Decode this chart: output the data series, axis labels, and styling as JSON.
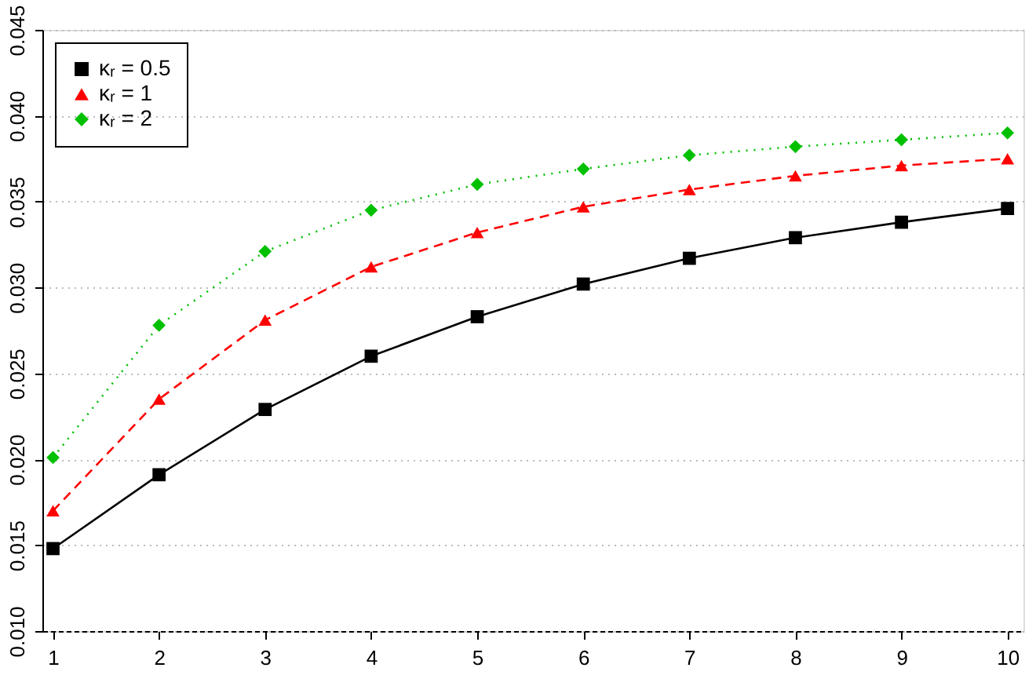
{
  "chart_data": {
    "type": "line",
    "x": [
      1,
      2,
      3,
      4,
      5,
      6,
      7,
      8,
      9,
      10
    ],
    "series": [
      {
        "name": "κᵣ = 0.5",
        "color": "#000000",
        "marker": "square",
        "line_style": "solid",
        "values": [
          0.0148,
          0.0191,
          0.0229,
          0.026,
          0.0283,
          0.0302,
          0.0317,
          0.0329,
          0.0338,
          0.0346
        ]
      },
      {
        "name": "κᵣ = 1",
        "color": "#ff0000",
        "marker": "triangle",
        "line_style": "dashed",
        "values": [
          0.017,
          0.0235,
          0.0281,
          0.0312,
          0.0332,
          0.0347,
          0.0357,
          0.0365,
          0.0371,
          0.0375
        ]
      },
      {
        "name": "κᵣ = 2",
        "color": "#00c000",
        "marker": "diamond",
        "line_style": "dotted",
        "values": [
          0.0201,
          0.0278,
          0.0321,
          0.0345,
          0.036,
          0.0369,
          0.0377,
          0.0382,
          0.0386,
          0.039
        ]
      }
    ],
    "xlim": [
      0.9,
      10.15
    ],
    "xticks": [
      1,
      2,
      3,
      4,
      5,
      6,
      7,
      8,
      9,
      10
    ],
    "ylim": [
      0.01,
      0.045
    ],
    "yticks": [
      {
        "value": 0.01,
        "label": "0.010"
      },
      0.015,
      {
        "value": 0.02,
        "label": "0.020"
      },
      0.025,
      {
        "value": 0.03,
        "label": "0.030"
      },
      0.035,
      {
        "value": 0.04,
        "label": "0.040"
      },
      0.045
    ],
    "grid": "y",
    "legend": "top left"
  }
}
